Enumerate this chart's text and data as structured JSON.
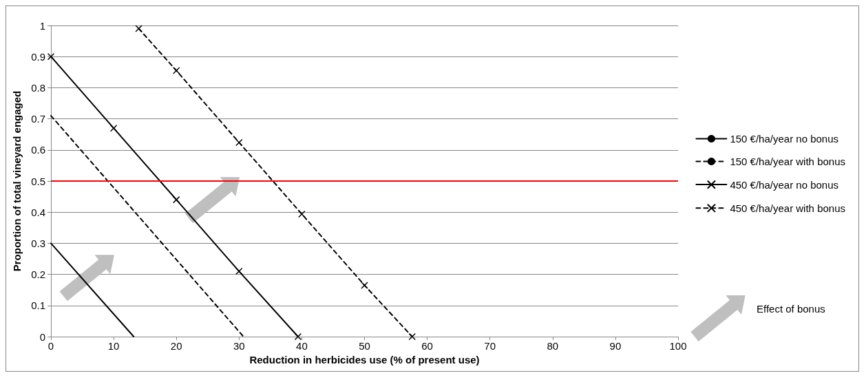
{
  "chart_data": {
    "type": "line",
    "xlabel": "Reduction in herbicides use (% of present use)",
    "ylabel": "Proportion of total vineyard engaged",
    "xlim": [
      0,
      100
    ],
    "xticks": [
      0,
      10,
      20,
      30,
      40,
      50,
      60,
      70,
      80,
      90,
      100
    ],
    "ylim": [
      0,
      1
    ],
    "yticks": [
      0,
      0.1,
      0.2,
      0.3,
      0.4,
      0.5,
      0.6,
      0.7,
      0.8,
      0.9,
      1
    ],
    "grid": "y",
    "legend": "right",
    "series": [
      {
        "name": "150 €/ha/year no bonus",
        "color": "#000000",
        "line_style": "solid",
        "marker": "none",
        "x": [
          0,
          13.2
        ],
        "values": [
          0.3,
          0
        ]
      },
      {
        "name": "150 €/ha/year with bonus",
        "color": "#000000",
        "line_style": "dashed",
        "marker": "none",
        "x": [
          0,
          30.7
        ],
        "values": [
          0.71,
          0
        ]
      },
      {
        "name": "450 €/ha/year no bonus",
        "color": "#000000",
        "line_style": "solid",
        "marker": "cross",
        "x": [
          0,
          10,
          20,
          30,
          39.4
        ],
        "values": [
          0.9,
          0.67,
          0.44,
          0.21,
          0
        ]
      },
      {
        "name": "450 €/ha/year with bonus",
        "color": "#000000",
        "line_style": "dashed",
        "marker": "cross",
        "x": [
          14,
          20,
          30,
          40,
          50,
          57.6
        ],
        "values": [
          0.99,
          0.855,
          0.624,
          0.394,
          0.165,
          0
        ]
      }
    ],
    "ref_lines": [
      {
        "axis": "y",
        "value": 0.5,
        "color": "#ff0000",
        "line_style": "solid"
      }
    ],
    "annotations": [
      "Effect of bonus"
    ]
  }
}
